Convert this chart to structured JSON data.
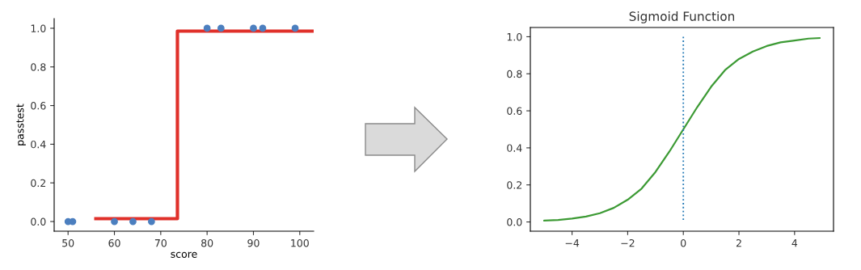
{
  "chart_data": [
    {
      "type": "scatter",
      "xlabel": "score",
      "ylabel": "passtest",
      "xlim": [
        47,
        103
      ],
      "ylim": [
        -0.05,
        1.05
      ],
      "xticks": [
        50,
        60,
        70,
        80,
        90,
        100
      ],
      "yticks": [
        {
          "value": 0,
          "label": "0.0"
        },
        {
          "value": 0.2,
          "label": "0.2"
        },
        {
          "value": 0.4,
          "label": "0.4"
        },
        {
          "value": 0.6,
          "label": "0.6"
        },
        {
          "value": 0.8,
          "label": "0.8"
        },
        {
          "value": 1,
          "label": "1.0"
        }
      ],
      "grid": false,
      "legend": false,
      "series": [
        {
          "type": "scatter",
          "color": "#4c7fbf",
          "marker": "circle",
          "x": [
            50,
            51,
            60,
            64,
            68,
            80,
            83,
            90,
            92,
            99
          ],
          "values": [
            0,
            0,
            0,
            0,
            0,
            1,
            1,
            1,
            1,
            1
          ]
        },
        {
          "type": "line",
          "color": "#e0302a",
          "marker": "none",
          "line_style": "solid",
          "x": [
            56,
            73.6,
            73.6,
            103
          ],
          "values": [
            0.015,
            0.015,
            0.985,
            0.985
          ]
        }
      ]
    },
    {
      "type": "line",
      "title": "Sigmoid Function",
      "xlim": [
        -5.5,
        5.4
      ],
      "ylim": [
        -0.05,
        1.05
      ],
      "xticks": [
        {
          "value": -4,
          "label": "−4"
        },
        {
          "value": -2,
          "label": "−2"
        },
        0,
        2,
        4
      ],
      "yticks": [
        {
          "value": 0,
          "label": "0.0"
        },
        {
          "value": 0.2,
          "label": "0.2"
        },
        {
          "value": 0.4,
          "label": "0.4"
        },
        {
          "value": 0.6,
          "label": "0.6"
        },
        {
          "value": 0.8,
          "label": "0.8"
        },
        {
          "value": 1,
          "label": "1.0"
        }
      ],
      "grid": false,
      "legend": false,
      "marker": "none",
      "line_style": "solid",
      "ref_lines": [
        {
          "axis": "x",
          "value": 0,
          "color": "#1f77b4",
          "line_style": "dotted"
        }
      ],
      "series": [
        {
          "color": "#3c9a34",
          "x": [
            -5,
            -4.5,
            -4,
            -3.5,
            -3,
            -2.5,
            -2,
            -1.5,
            -1,
            -0.5,
            0,
            0.5,
            1,
            1.5,
            2,
            2.5,
            3,
            3.5,
            4,
            4.5,
            4.9
          ],
          "values": [
            0.007,
            0.011,
            0.018,
            0.029,
            0.047,
            0.076,
            0.12,
            0.18,
            0.27,
            0.38,
            0.5,
            0.62,
            0.73,
            0.82,
            0.88,
            0.92,
            0.95,
            0.97,
            0.98,
            0.99,
            0.993
          ]
        }
      ]
    }
  ]
}
